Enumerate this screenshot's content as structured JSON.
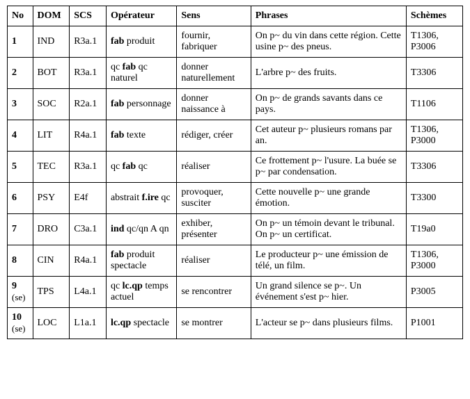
{
  "table": {
    "headers": {
      "no": "No",
      "dom": "DOM",
      "scs": "SCS",
      "op": "Opérateur",
      "sens": "Sens",
      "phr": "Phrases",
      "sch": "Schèmes"
    },
    "rows": [
      {
        "no": "1",
        "no_sub": "",
        "dom": "IND",
        "scs": "R3a.1",
        "op_html": "<b>fab</b> produit",
        "sens": "fournir, fabriquer",
        "phr": "On p~ du vin dans cette région. Cette usine p~ des pneus.",
        "sch": "T1306, P3006"
      },
      {
        "no": "2",
        "no_sub": "",
        "dom": "BOT",
        "scs": "R3a.1",
        "op_html": "qc <b>fab</b> qc naturel",
        "sens": "donner naturellement",
        "phr": "L'arbre p~ des fruits.",
        "sch": "T3306"
      },
      {
        "no": "3",
        "no_sub": "",
        "dom": "SOC",
        "scs": "R2a.1",
        "op_html": "<b>fab</b> personnage",
        "sens": "donner naissance à",
        "phr": "On p~ de grands savants dans ce pays.",
        "sch": "T1106"
      },
      {
        "no": "4",
        "no_sub": "",
        "dom": "LIT",
        "scs": "R4a.1",
        "op_html": "<b>fab</b> texte",
        "sens": "rédiger, créer",
        "phr": "Cet auteur p~ plusieurs romans par an.",
        "sch": "T1306, P3000"
      },
      {
        "no": "5",
        "no_sub": "",
        "dom": "TEC",
        "scs": "R3a.1",
        "op_html": "qc <b>fab</b> qc",
        "sens": "réaliser",
        "phr": "Ce frottement p~ l'usure. La buée se p~ par condensation.",
        "sch": "T3306"
      },
      {
        "no": "6",
        "no_sub": "",
        "dom": "PSY",
        "scs": "E4f",
        "op_html": "abstrait <b>f.ire</b> qc",
        "sens": "provoquer, susciter",
        "phr": "Cette nouvelle p~ une grande émotion.",
        "sch": "T3300"
      },
      {
        "no": "7",
        "no_sub": "",
        "dom": "DRO",
        "scs": "C3a.1",
        "op_html": "<b>ind</b> qc/qn A qn",
        "sens": "exhiber, présenter",
        "phr": "On p~ un témoin devant le tribunal. On p~ un certificat.",
        "sch": "T19a0"
      },
      {
        "no": "8",
        "no_sub": "",
        "dom": "CIN",
        "scs": "R4a.1",
        "op_html": "<b>fab</b> produit spectacle",
        "sens": "réaliser",
        "phr": "Le producteur p~ une émission de télé, un film.",
        "sch": "T1306, P3000"
      },
      {
        "no": "9",
        "no_sub": "(se)",
        "dom": "TPS",
        "scs": "L4a.1",
        "op_html": "qc <b>lc.qp</b> temps actuel",
        "sens": "se rencontrer",
        "phr": "Un grand silence se p~. Un événement s'est p~ hier.",
        "sch": "P3005"
      },
      {
        "no": "10",
        "no_sub": "(se)",
        "dom": "LOC",
        "scs": "L1a.1",
        "op_html": "<b>lc.qp</b> spectacle",
        "sens": "se montrer",
        "phr": "L'acteur se p~ dans plusieurs films.",
        "sch": "P1001"
      }
    ]
  }
}
